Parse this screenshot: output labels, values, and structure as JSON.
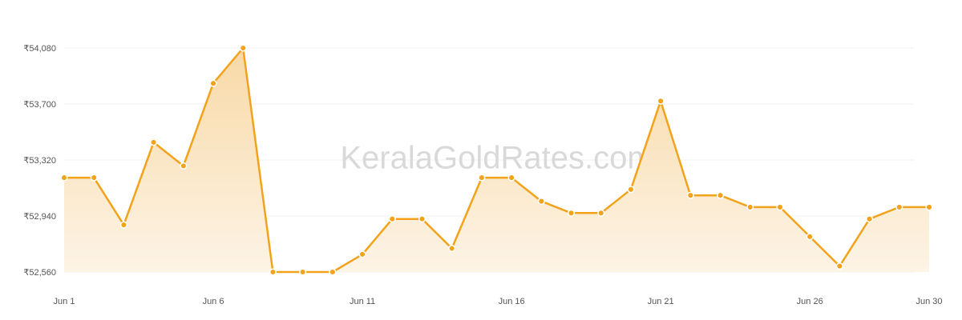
{
  "watermark": "KeralaGoldRates.com",
  "colors": {
    "line": "#f2a31b",
    "area_top": "#f8d9a6",
    "area_bottom": "#fdf4e6",
    "marker_fill": "#f2a31b",
    "marker_stroke": "#ffffff"
  },
  "chart_data": {
    "type": "area",
    "title": "",
    "xlabel": "",
    "ylabel": "",
    "grid": true,
    "ylim": [
      52560,
      54080
    ],
    "yticks": [
      52560,
      52940,
      53320,
      53700,
      54080
    ],
    "ytick_labels": [
      "₹52,560",
      "₹52,940",
      "₹53,320",
      "₹53,700",
      "₹54,080"
    ],
    "xticks": [
      1,
      6,
      11,
      16,
      21,
      26,
      30
    ],
    "xtick_labels": [
      "Jun 1",
      "Jun 6",
      "Jun 11",
      "Jun 16",
      "Jun 21",
      "Jun 26",
      "Jun 30"
    ],
    "x": [
      1,
      2,
      3,
      4,
      5,
      6,
      7,
      8,
      9,
      10,
      11,
      12,
      13,
      14,
      15,
      16,
      17,
      18,
      19,
      20,
      21,
      22,
      23,
      24,
      25,
      26,
      27,
      28,
      29,
      30
    ],
    "values": [
      53200,
      53200,
      52880,
      53440,
      53280,
      53840,
      54080,
      52560,
      52560,
      52560,
      52680,
      52920,
      52920,
      52720,
      53200,
      53200,
      53040,
      52960,
      52960,
      53120,
      53720,
      53080,
      53080,
      53000,
      53000,
      52800,
      52600,
      52920,
      53000,
      53000
    ]
  }
}
